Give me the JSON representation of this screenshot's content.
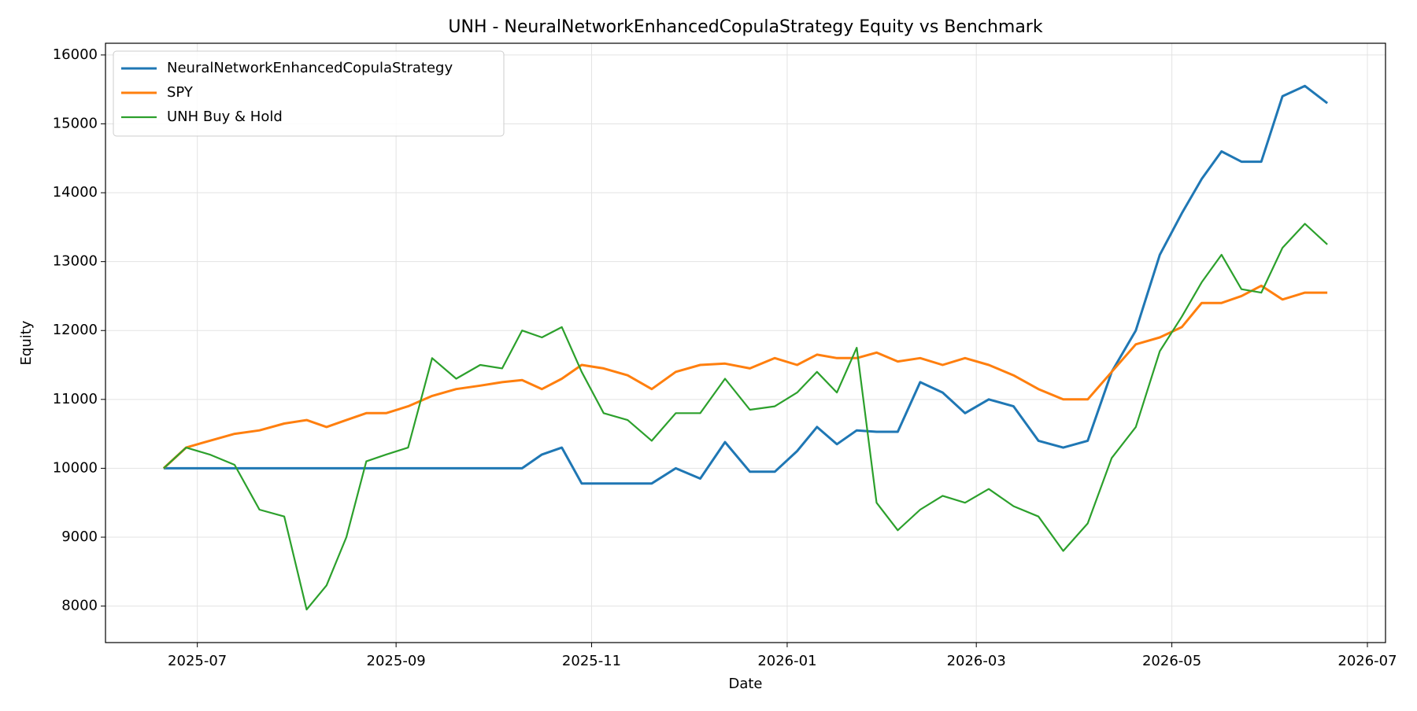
{
  "chart_data": {
    "type": "line",
    "title": "UNH - NeuralNetworkEnhancedCopulaStrategy Equity vs Benchmark",
    "x_label": "Date",
    "y_label": "Equity",
    "x": [
      "2025-06",
      "2025-06",
      "2025-07",
      "2025-07",
      "2025-07",
      "2025-07",
      "2025-08",
      "2025-08",
      "2025-08",
      "2025-08",
      "2025-08",
      "2025-09",
      "2025-09",
      "2025-09",
      "2025-09",
      "2025-10",
      "2025-10",
      "2025-10",
      "2025-10",
      "2025-10",
      "2025-11",
      "2025-11",
      "2025-11",
      "2025-11",
      "2025-12",
      "2025-12",
      "2025-12",
      "2025-12",
      "2026-01",
      "2026-01",
      "2026-01",
      "2026-01",
      "2026-01",
      "2026-02",
      "2026-02",
      "2026-02",
      "2026-02",
      "2026-03",
      "2026-03",
      "2026-03",
      "2026-03",
      "2026-04",
      "2026-04",
      "2026-04",
      "2026-04",
      "2026-05",
      "2026-05",
      "2026-05",
      "2026-05",
      "2026-05",
      "2026-06",
      "2026-06",
      "2026-06"
    ],
    "series": [
      {
        "name": "NeuralNetworkEnhancedCopulaStrategy",
        "color": "#1f77b4",
        "values": [
          10000,
          10000,
          10000,
          10000,
          10000,
          10000,
          10000,
          10000,
          10000,
          10000,
          10000,
          10000,
          10000,
          10000,
          10000,
          10000,
          10000,
          10200,
          10300,
          9780,
          9780,
          9780,
          9780,
          10000,
          9850,
          10380,
          9950,
          9950,
          10250,
          10600,
          10350,
          10550,
          10530,
          10530,
          11250,
          11100,
          10800,
          11000,
          10900,
          10400,
          10300,
          10400,
          11400,
          12000,
          13100,
          13700,
          14200,
          14600,
          14450,
          14450,
          15400,
          15550,
          15300
        ]
      },
      {
        "name": "SPY",
        "color": "#ff7f0e",
        "values": [
          10000,
          10300,
          10400,
          10500,
          10550,
          10650,
          10700,
          10600,
          10700,
          10800,
          10800,
          10900,
          11050,
          11150,
          11200,
          11250,
          11280,
          11150,
          11300,
          11500,
          11450,
          11350,
          11150,
          11400,
          11500,
          11520,
          11450,
          11600,
          11500,
          11650,
          11600,
          11600,
          11680,
          11550,
          11600,
          11500,
          11600,
          11500,
          11350,
          11150,
          11000,
          11000,
          11400,
          11800,
          11900,
          12050,
          12400,
          12400,
          12500,
          12650,
          12450,
          12550,
          12550
        ]
      },
      {
        "name": "UNH Buy & Hold",
        "color": "#2ca02c",
        "values": [
          10000,
          10300,
          10200,
          10050,
          9400,
          9300,
          7950,
          8300,
          9000,
          10100,
          10200,
          10300,
          11600,
          11300,
          11500,
          11450,
          12000,
          11900,
          12050,
          11400,
          10800,
          10700,
          10400,
          10800,
          10800,
          11300,
          10850,
          10900,
          11100,
          11400,
          11100,
          11750,
          9500,
          9100,
          9400,
          9600,
          9500,
          9700,
          9450,
          9300,
          8800,
          9200,
          10150,
          10600,
          11700,
          12200,
          12700,
          13100,
          12600,
          12550,
          13200,
          13550,
          13250
        ]
      }
    ],
    "xticks": [
      "2025-07",
      "2025-09",
      "2025-11",
      "2026-01",
      "2026-03",
      "2026-05",
      "2026-07"
    ],
    "ylim": [
      7470,
      16170
    ],
    "yticks": [
      8000,
      9000,
      10000,
      11000,
      12000,
      13000,
      14000,
      15000,
      16000
    ],
    "grid": true,
    "legend": "upper left"
  }
}
